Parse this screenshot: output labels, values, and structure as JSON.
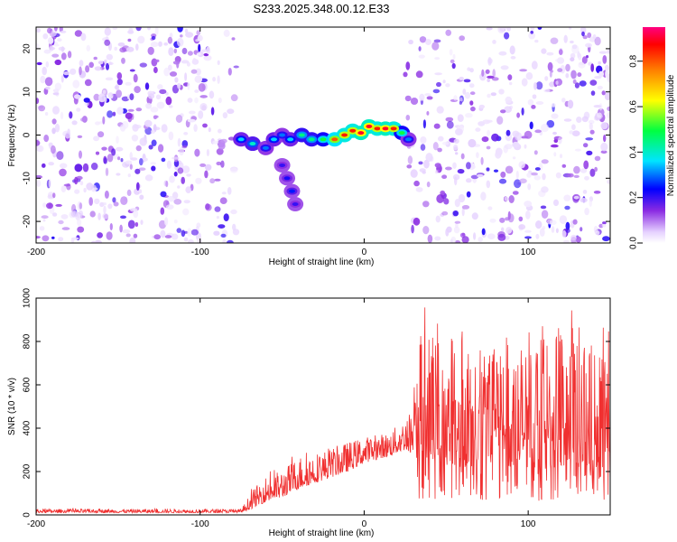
{
  "figure_title": "S233.2025.348.00.12.E33",
  "chart_data": [
    {
      "type": "heatmap",
      "title": "S233.2025.348.00.12.E33",
      "xlabel": "Height of straight line (km)",
      "ylabel": "Frequency (Hz)",
      "xlim": [
        -200,
        150
      ],
      "ylim": [
        -25,
        25
      ],
      "xticks": [
        -200,
        -100,
        0,
        100
      ],
      "yticks": [
        -20,
        -10,
        0,
        10,
        20
      ],
      "xtick_labels": [
        "-200",
        "-100",
        "0",
        "100"
      ],
      "ytick_labels": [
        "-20",
        "-10",
        "0",
        "10",
        "20"
      ],
      "colorbar": {
        "label": "Normalized spectral amplitude",
        "range": [
          0,
          0.95
        ],
        "ticks": [
          0.0,
          0.2,
          0.4,
          0.6,
          0.8
        ],
        "tick_labels": [
          "0.0",
          "0.2",
          "0.4",
          "0.6",
          "0.8"
        ]
      },
      "signal_ridge": [
        {
          "x": -75,
          "y": -1,
          "a": 0.35
        },
        {
          "x": -68,
          "y": -2,
          "a": 0.4
        },
        {
          "x": -60,
          "y": -3,
          "a": 0.3
        },
        {
          "x": -55,
          "y": -1,
          "a": 0.35
        },
        {
          "x": -50,
          "y": 0,
          "a": 0.3
        },
        {
          "x": -45,
          "y": -1,
          "a": 0.35
        },
        {
          "x": -38,
          "y": 0,
          "a": 0.45
        },
        {
          "x": -32,
          "y": -1,
          "a": 0.45
        },
        {
          "x": -25,
          "y": -1,
          "a": 0.5
        },
        {
          "x": -18,
          "y": -1,
          "a": 0.8
        },
        {
          "x": -12,
          "y": 0,
          "a": 0.85
        },
        {
          "x": -7,
          "y": 1,
          "a": 0.85
        },
        {
          "x": -2,
          "y": 0.5,
          "a": 0.9
        },
        {
          "x": 3,
          "y": 2,
          "a": 0.9
        },
        {
          "x": 8,
          "y": 1.5,
          "a": 0.85
        },
        {
          "x": 13,
          "y": 1.5,
          "a": 0.9
        },
        {
          "x": 18,
          "y": 1.5,
          "a": 0.85
        },
        {
          "x": 23,
          "y": 0.5,
          "a": 0.5
        },
        {
          "x": 27,
          "y": -1,
          "a": 0.3
        }
      ],
      "secondary_ridge": [
        {
          "x": -50,
          "y": -7,
          "a": 0.2
        },
        {
          "x": -47,
          "y": -10,
          "a": 0.22
        },
        {
          "x": -44,
          "y": -13,
          "a": 0.25
        },
        {
          "x": -42,
          "y": -16,
          "a": 0.2
        }
      ]
    },
    {
      "type": "line",
      "xlabel": "Height of straight line (km)",
      "ylabel": "SNR (10 * v/v)",
      "xlim": [
        -200,
        150
      ],
      "ylim": [
        0,
        1000
      ],
      "xticks": [
        -200,
        -100,
        0,
        100
      ],
      "yticks": [
        0,
        200,
        400,
        600,
        800,
        1000
      ],
      "xtick_labels": [
        "-200",
        "-100",
        "0",
        "100"
      ],
      "ytick_labels": [
        "0",
        "200",
        "400",
        "600",
        "800",
        "1000"
      ],
      "color": "#f03030",
      "envelope": [
        {
          "x": -200,
          "base": 10,
          "peak": 30
        },
        {
          "x": -75,
          "base": 10,
          "peak": 30
        },
        {
          "x": -68,
          "base": 30,
          "peak": 130
        },
        {
          "x": -60,
          "base": 60,
          "peak": 200
        },
        {
          "x": -50,
          "base": 80,
          "peak": 230
        },
        {
          "x": -40,
          "base": 120,
          "peak": 300
        },
        {
          "x": -25,
          "base": 160,
          "peak": 320
        },
        {
          "x": -10,
          "base": 200,
          "peak": 360
        },
        {
          "x": 0,
          "base": 240,
          "peak": 380
        },
        {
          "x": 15,
          "base": 270,
          "peak": 400
        },
        {
          "x": 25,
          "base": 300,
          "peak": 470
        },
        {
          "x": 30,
          "base": 280,
          "peak": 550
        },
        {
          "x": 32,
          "base": 250,
          "peak": 1000
        },
        {
          "x": 60,
          "base": 220,
          "peak": 850
        },
        {
          "x": 100,
          "base": 220,
          "peak": 900
        },
        {
          "x": 130,
          "base": 200,
          "peak": 1000
        },
        {
          "x": 150,
          "base": 220,
          "peak": 850
        }
      ]
    }
  ]
}
